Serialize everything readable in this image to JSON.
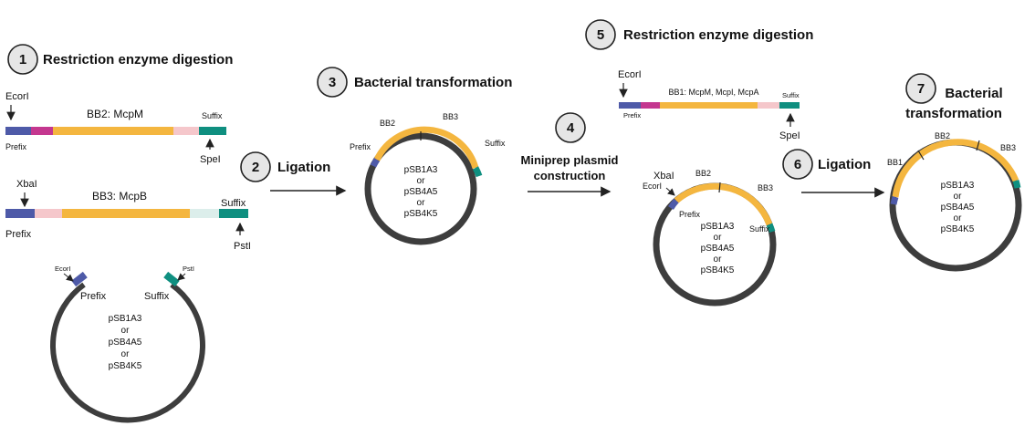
{
  "colors": {
    "blue": "#4e5aa8",
    "magenta": "#c4378f",
    "orange": "#f4b63f",
    "pink": "#f5c7cb",
    "teal": "#0f8f80",
    "mint": "#dceeeb",
    "backbone": "#3d3d3d",
    "circle": "#e8e8e8"
  },
  "steps": {
    "s1": {
      "num": "1",
      "title": "Restriction enzyme digestion"
    },
    "s2": {
      "num": "2",
      "title": "Ligation"
    },
    "s3": {
      "num": "3",
      "title": "Bacterial transformation"
    },
    "s4": {
      "num": "4",
      "title_line1": "Miniprep  plasmid",
      "title_line2": "construction"
    },
    "s5": {
      "num": "5",
      "title": "Restriction enzyme digestion"
    },
    "s6": {
      "num": "6",
      "title": "Ligation"
    },
    "s7": {
      "num": "7",
      "title_line1": "Bacterial",
      "title_line2": "transformation"
    }
  },
  "parts": {
    "bb2": {
      "name": "BB2: McpM",
      "site_left": "EcorI",
      "site_right": "SpeI",
      "prefix": "Prefix",
      "suffix": "Suffix"
    },
    "bb3": {
      "name": "BB3: McpB",
      "site_left": "XbaI",
      "site_right": "PstI",
      "prefix": "Prefix",
      "suffix": "Suffix"
    },
    "bb1": {
      "name": "BB1: McpM, McpI, McpA",
      "site_left": "EcorI",
      "site_right": "SpeI",
      "prefix": "Prefix",
      "suffix": "Suffix"
    }
  },
  "vectors": {
    "backbone": {
      "names": [
        "pSB1A3",
        "or",
        "pSB4A5",
        "or",
        "pSB4K5"
      ],
      "site_left": "EcorI",
      "site_right": "PstI",
      "prefix": "Prefix",
      "suffix": "Suffix"
    },
    "plasmid3": {
      "names": [
        "pSB1A3",
        "or",
        "pSB4A5",
        "or",
        "pSB4K5"
      ],
      "bb_a": "BB2",
      "bb_b": "BB3",
      "prefix": "Prefix",
      "suffix": "Suffix"
    },
    "plasmid4": {
      "names": [
        "pSB1A3",
        "or",
        "pSB4A5",
        "or",
        "pSB4K5"
      ],
      "site_a": "XbaI",
      "site_b": "EcorI",
      "prefix": "Prefix",
      "suffix": "Suffix",
      "bb_a": "BB2",
      "bb_b": "BB3"
    },
    "plasmid7": {
      "names": [
        "pSB1A3",
        "or",
        "pSB4A5",
        "or",
        "pSB4K5"
      ],
      "bb_a": "BB1",
      "bb_b": "BB2",
      "bb_c": "BB3"
    }
  }
}
